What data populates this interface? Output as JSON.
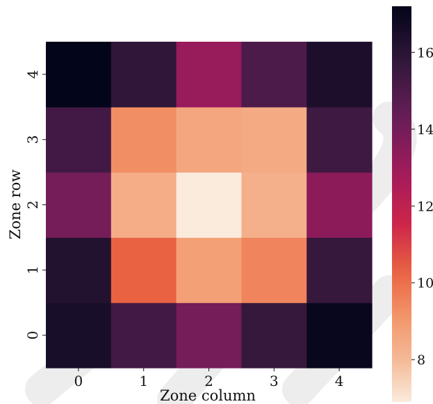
{
  "chart_data": {
    "type": "heatmap",
    "title": "",
    "xlabel": "Zone column",
    "ylabel": "Zone row",
    "x_categories": [
      "0",
      "1",
      "2",
      "3",
      "4"
    ],
    "y_categories": [
      "0",
      "1",
      "2",
      "3",
      "4"
    ],
    "values_by_row": [
      [
        16.5,
        15.3,
        14.0,
        15.6,
        17.0
      ],
      [
        16.2,
        10.3,
        8.8,
        9.5,
        15.6
      ],
      [
        14.0,
        8.4,
        6.9,
        8.3,
        13.4
      ],
      [
        15.3,
        9.3,
        8.6,
        8.5,
        15.4
      ],
      [
        17.2,
        15.8,
        13.1,
        15.0,
        16.4
      ]
    ],
    "colorbar": {
      "min": 6.9,
      "max": 17.2,
      "ticks": [
        8,
        10,
        12,
        14,
        16
      ],
      "colormap": "rocket_r"
    },
    "grid": false
  },
  "colors": {
    "low": "#faebdd",
    "high": "#03051a",
    "text": "#111111",
    "background": "#ffffff"
  }
}
